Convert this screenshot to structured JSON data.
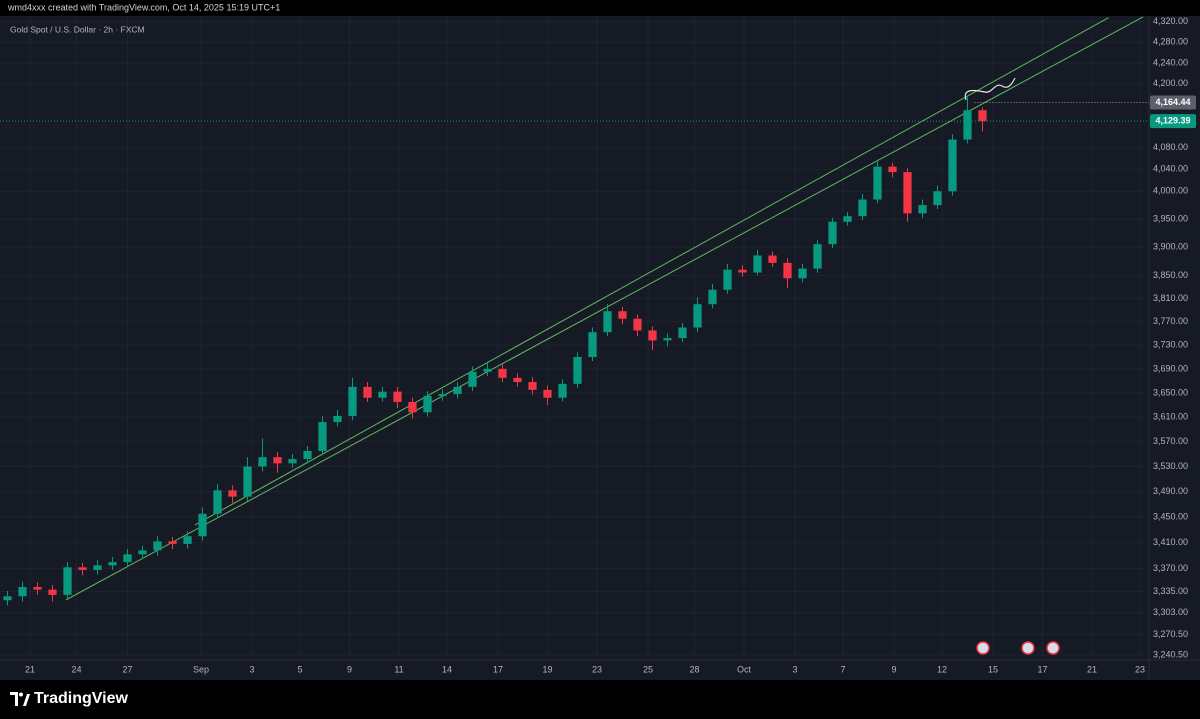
{
  "header": "wmd4xxx created with TradingView.com, Oct 14, 2025 15:19 UTC+1",
  "brand": "TradingView",
  "chart_data": {
    "type": "candlestick",
    "title": "Gold Spot / U.S. Dollar · 2h · FXCM",
    "log_scale": true,
    "grid": true,
    "up_color": "#089981",
    "down_color": "#f23645",
    "x": [
      0,
      1,
      2,
      3,
      4,
      5,
      6,
      7,
      8,
      9,
      10,
      11,
      12,
      13,
      14,
      15,
      16,
      17,
      18,
      19,
      20,
      21,
      22,
      23,
      24,
      25,
      26,
      27,
      28,
      29,
      30,
      31,
      32,
      33,
      34,
      35,
      36,
      37,
      38,
      39,
      40,
      41,
      42,
      43,
      44,
      45,
      46,
      47,
      48,
      49,
      50,
      51,
      52,
      53,
      54,
      55,
      56,
      57,
      58,
      59,
      60,
      61,
      62,
      63,
      64,
      65
    ],
    "open": [
      3322,
      3328,
      3342,
      3338,
      3330,
      3372,
      3368,
      3375,
      3380,
      3392,
      3398,
      3412,
      3408,
      3420,
      3455,
      3492,
      3482,
      3530,
      3545,
      3535,
      3542,
      3555,
      3602,
      3612,
      3660,
      3642,
      3652,
      3635,
      3618,
      3645,
      3648,
      3660,
      3685,
      3690,
      3675,
      3668,
      3655,
      3642,
      3665,
      3710,
      3752,
      3788,
      3775,
      3755,
      3738,
      3742,
      3760,
      3800,
      3825,
      3860,
      3855,
      3885,
      3872,
      3845,
      3862,
      3905,
      3945,
      3955,
      3985,
      4045,
      4035,
      3960,
      3975,
      4000,
      4095,
      4150
    ],
    "high": [
      3336,
      3350,
      3349,
      3345,
      3380,
      3379,
      3383,
      3388,
      3400,
      3405,
      3420,
      3419,
      3428,
      3465,
      3502,
      3500,
      3545,
      3575,
      3553,
      3550,
      3563,
      3612,
      3622,
      3675,
      3668,
      3660,
      3660,
      3642,
      3653,
      3656,
      3668,
      3694,
      3702,
      3698,
      3683,
      3676,
      3662,
      3672,
      3718,
      3760,
      3800,
      3795,
      3782,
      3762,
      3750,
      3768,
      3812,
      3835,
      3870,
      3868,
      3895,
      3892,
      3880,
      3870,
      3912,
      3952,
      3962,
      3995,
      4058,
      4052,
      4042,
      3985,
      4010,
      4105,
      4178,
      4155
    ],
    "low": [
      3314,
      3320,
      3330,
      3320,
      3325,
      3360,
      3361,
      3368,
      3373,
      3385,
      3390,
      3400,
      3401,
      3413,
      3448,
      3472,
      3475,
      3522,
      3520,
      3528,
      3535,
      3548,
      3595,
      3605,
      3635,
      3636,
      3625,
      3608,
      3611,
      3637,
      3641,
      3653,
      3678,
      3668,
      3660,
      3647,
      3630,
      3636,
      3658,
      3703,
      3745,
      3766,
      3745,
      3722,
      3728,
      3735,
      3752,
      3793,
      3818,
      3848,
      3850,
      3865,
      3828,
      3838,
      3855,
      3898,
      3938,
      3948,
      3978,
      4025,
      3945,
      3952,
      3968,
      3992,
      4088,
      4110
    ],
    "close": [
      3328,
      3342,
      3338,
      3330,
      3372,
      3368,
      3375,
      3380,
      3392,
      3398,
      3412,
      3408,
      3420,
      3455,
      3492,
      3482,
      3530,
      3545,
      3535,
      3542,
      3555,
      3602,
      3612,
      3660,
      3642,
      3652,
      3635,
      3618,
      3645,
      3648,
      3660,
      3685,
      3690,
      3675,
      3668,
      3655,
      3642,
      3665,
      3710,
      3752,
      3788,
      3775,
      3755,
      3738,
      3742,
      3760,
      3800,
      3825,
      3860,
      3855,
      3885,
      3872,
      3845,
      3862,
      3905,
      3945,
      3955,
      3985,
      4045,
      4035,
      3960,
      3975,
      4000,
      4095,
      4150,
      4129.39
    ],
    "xlim": [
      -0.5,
      76.1
    ],
    "xticks": [
      {
        "value": 1.5,
        "label": "21"
      },
      {
        "value": 4.6,
        "label": "24"
      },
      {
        "value": 8,
        "label": "27"
      },
      {
        "value": 12.9,
        "label": "Sep"
      },
      {
        "value": 16.3,
        "label": "3"
      },
      {
        "value": 19.5,
        "label": "5"
      },
      {
        "value": 22.8,
        "label": "9"
      },
      {
        "value": 26.1,
        "label": "11"
      },
      {
        "value": 29.3,
        "label": "14"
      },
      {
        "value": 32.7,
        "label": "17"
      },
      {
        "value": 36,
        "label": "19"
      },
      {
        "value": 39.3,
        "label": "23"
      },
      {
        "value": 42.7,
        "label": "25"
      },
      {
        "value": 45.8,
        "label": "28"
      },
      {
        "value": 49.1,
        "label": "Oct"
      },
      {
        "value": 52.5,
        "label": "3"
      },
      {
        "value": 55.7,
        "label": "7"
      },
      {
        "value": 59.1,
        "label": "9"
      },
      {
        "value": 62.3,
        "label": "12"
      },
      {
        "value": 65.7,
        "label": "15"
      },
      {
        "value": 69,
        "label": "17"
      },
      {
        "value": 72.3,
        "label": "21"
      },
      {
        "value": 75.5,
        "label": "23"
      }
    ],
    "ylim": [
      3233,
      4363
    ],
    "yticks": [
      {
        "value": 3240.5,
        "label": "3,240.50"
      },
      {
        "value": 3270.5,
        "label": "3,270.50"
      },
      {
        "value": 3303,
        "label": "3,303.00"
      },
      {
        "value": 3335,
        "label": "3,335.00"
      },
      {
        "value": 3370,
        "label": "3,370.00"
      },
      {
        "value": 3410,
        "label": "3,410.00"
      },
      {
        "value": 3450,
        "label": "3,450.00"
      },
      {
        "value": 3490,
        "label": "3,490.00"
      },
      {
        "value": 3530,
        "label": "3,530.00"
      },
      {
        "value": 3570,
        "label": "3,570.00"
      },
      {
        "value": 3610,
        "label": "3,610.00"
      },
      {
        "value": 3650,
        "label": "3,650.00"
      },
      {
        "value": 3690,
        "label": "3,690.00"
      },
      {
        "value": 3730,
        "label": "3,730.00"
      },
      {
        "value": 3770,
        "label": "3,770.00"
      },
      {
        "value": 3810,
        "label": "3,810.00"
      },
      {
        "value": 3850,
        "label": "3,850.00"
      },
      {
        "value": 3900,
        "label": "3,900.00"
      },
      {
        "value": 3950,
        "label": "3,950.00"
      },
      {
        "value": 4000,
        "label": "4,000.00"
      },
      {
        "value": 4040,
        "label": "4,040.00"
      },
      {
        "value": 4080,
        "label": "4,080.00"
      },
      {
        "value": 4200,
        "label": "4,200.00"
      },
      {
        "value": 4240,
        "label": "4,240.00"
      },
      {
        "value": 4280,
        "label": "4,280.00"
      },
      {
        "value": 4320,
        "label": "4,320.00"
      }
    ],
    "trendline_color": "#5fb85f",
    "trendlines": [
      {
        "x": [
          12.5,
          73.4
        ],
        "y": [
          3437.6,
          4328
        ]
      },
      {
        "x": [
          3.9,
          75.7
        ],
        "y": [
          3322.5,
          4329.6
        ]
      }
    ],
    "high_line": {
      "value": 4164.44,
      "label": "4,164.44"
    },
    "last_price": {
      "value": 4129.39,
      "label": "4,129.39"
    }
  }
}
